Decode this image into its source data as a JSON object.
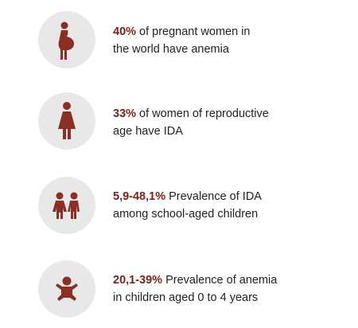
{
  "items": [
    {
      "highlight": "40%",
      "lines": [
        "of pregnant women in",
        "the world have anemia"
      ]
    },
    {
      "highlight": "33%",
      "lines": [
        "of women of reproductive",
        "age have IDA"
      ]
    },
    {
      "highlight": "5,9-48,1%",
      "lines": [
        "Prevalence of IDA",
        "among school-aged children"
      ]
    },
    {
      "highlight": "20,1-39%",
      "lines": [
        "Prevalence of anemia",
        "in children aged 0 to 4 years"
      ]
    }
  ]
}
